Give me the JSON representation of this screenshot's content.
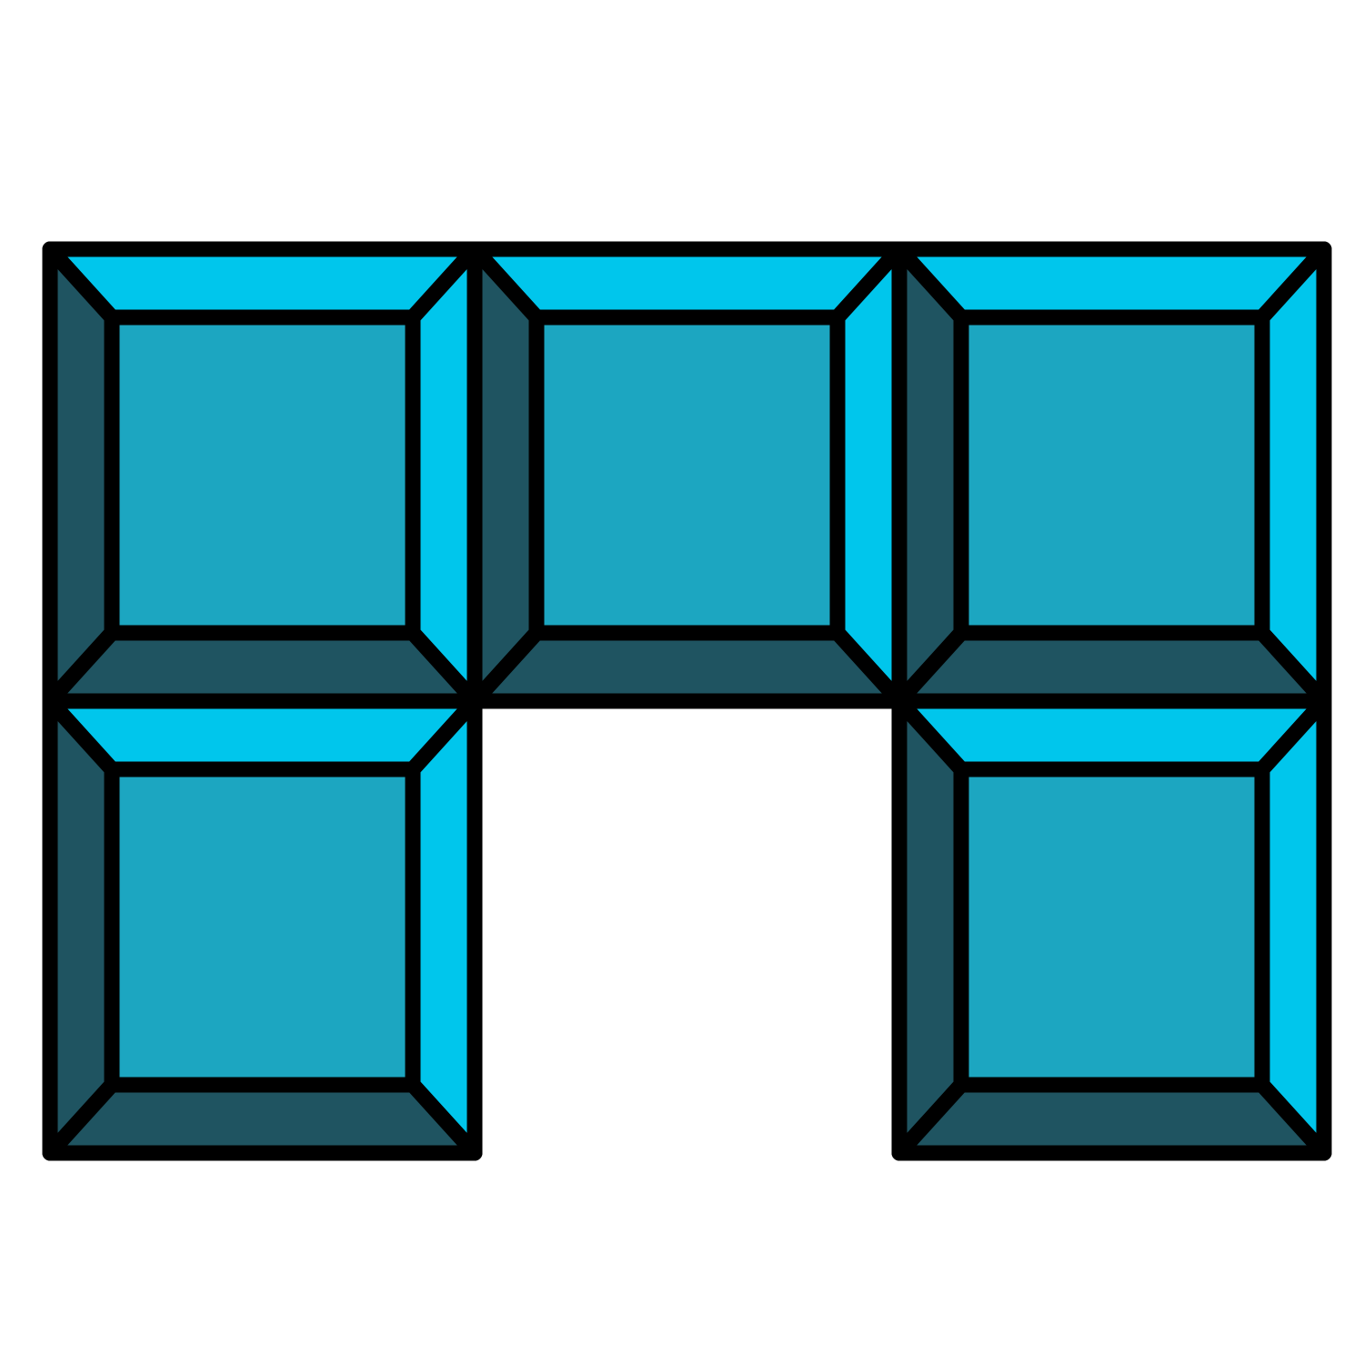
{
  "piece": {
    "shape": "U-pentomino",
    "grid": {
      "columns": 3,
      "rows": 2
    },
    "occupied_cells": [
      {
        "row": 0,
        "col": 0
      },
      {
        "row": 0,
        "col": 1
      },
      {
        "row": 0,
        "col": 2
      },
      {
        "row": 1,
        "col": 0
      },
      {
        "row": 1,
        "col": 2
      }
    ],
    "colors": {
      "face": "#1ca6c1",
      "bevel_light": "#00c6ec",
      "bevel_dark": "#1f5461",
      "outline": "#000000",
      "background": "#ffffff"
    },
    "icons": {
      "block": "beveled-square-block-icon"
    }
  }
}
